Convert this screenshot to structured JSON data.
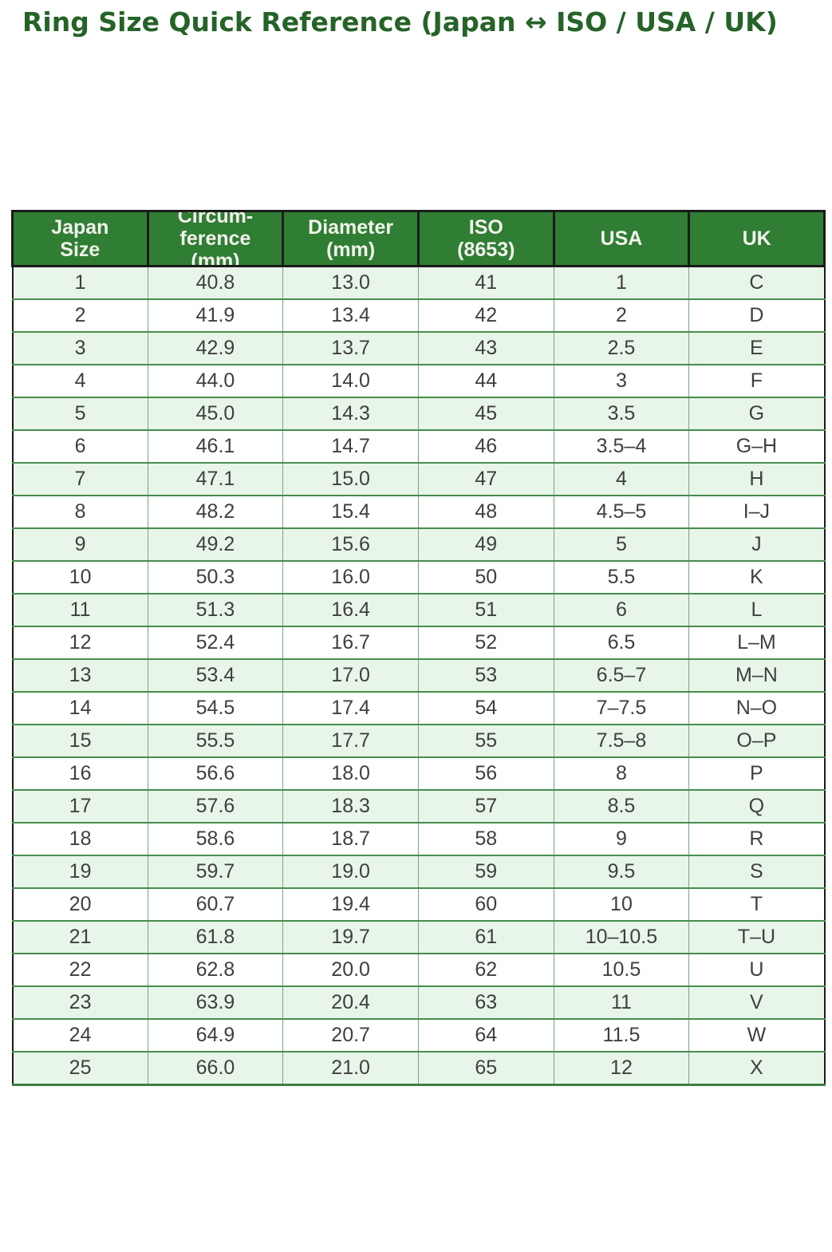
{
  "title": "Ring Size Quick Reference (Japan ↔ ISO / USA / UK)",
  "colors": {
    "title_green": "#256328",
    "header_bg": "#307d34",
    "header_text": "#f2f3ec",
    "outer_dark": "#1b1b1b",
    "row_stripe": "#e8f5e9",
    "row_plain": "#ffffff",
    "cell_text": "#3f3f3f",
    "grid_green": "#478d4d",
    "grid_light_green": "#72ab76",
    "bottom_green": "#3e7d43"
  },
  "chart_data": {
    "type": "table",
    "title": "Ring Size Quick Reference (Japan ↔ ISO / USA / UK)",
    "columns": [
      {
        "key": "japan_size",
        "label": "Japan\nSize"
      },
      {
        "key": "circumference_mm",
        "label": "Circum-\nference\n(mm)"
      },
      {
        "key": "diameter_mm",
        "label": "Diameter\n(mm)"
      },
      {
        "key": "iso_8653",
        "label": "ISO\n(8653)"
      },
      {
        "key": "usa",
        "label": "USA"
      },
      {
        "key": "uk",
        "label": "UK"
      }
    ],
    "rows": [
      [
        "1",
        "40.8",
        "13.0",
        "41",
        "1",
        "C"
      ],
      [
        "2",
        "41.9",
        "13.4",
        "42",
        "2",
        "D"
      ],
      [
        "3",
        "42.9",
        "13.7",
        "43",
        "2.5",
        "E"
      ],
      [
        "4",
        "44.0",
        "14.0",
        "44",
        "3",
        "F"
      ],
      [
        "5",
        "45.0",
        "14.3",
        "45",
        "3.5",
        "G"
      ],
      [
        "6",
        "46.1",
        "14.7",
        "46",
        "3.5–4",
        "G–H"
      ],
      [
        "7",
        "47.1",
        "15.0",
        "47",
        "4",
        "H"
      ],
      [
        "8",
        "48.2",
        "15.4",
        "48",
        "4.5–5",
        "I–J"
      ],
      [
        "9",
        "49.2",
        "15.6",
        "49",
        "5",
        "J"
      ],
      [
        "10",
        "50.3",
        "16.0",
        "50",
        "5.5",
        "K"
      ],
      [
        "11",
        "51.3",
        "16.4",
        "51",
        "6",
        "L"
      ],
      [
        "12",
        "52.4",
        "16.7",
        "52",
        "6.5",
        "L–M"
      ],
      [
        "13",
        "53.4",
        "17.0",
        "53",
        "6.5–7",
        "M–N"
      ],
      [
        "14",
        "54.5",
        "17.4",
        "54",
        "7–7.5",
        "N–O"
      ],
      [
        "15",
        "55.5",
        "17.7",
        "55",
        "7.5–8",
        "O–P"
      ],
      [
        "16",
        "56.6",
        "18.0",
        "56",
        "8",
        "P"
      ],
      [
        "17",
        "57.6",
        "18.3",
        "57",
        "8.5",
        "Q"
      ],
      [
        "18",
        "58.6",
        "18.7",
        "58",
        "9",
        "R"
      ],
      [
        "19",
        "59.7",
        "19.0",
        "59",
        "9.5",
        "S"
      ],
      [
        "20",
        "60.7",
        "19.4",
        "60",
        "10",
        "T"
      ],
      [
        "21",
        "61.8",
        "19.7",
        "61",
        "10–10.5",
        "T–U"
      ],
      [
        "22",
        "62.8",
        "20.0",
        "62",
        "10.5",
        "U"
      ],
      [
        "23",
        "63.9",
        "20.4",
        "63",
        "11",
        "V"
      ],
      [
        "24",
        "64.9",
        "20.7",
        "64",
        "11.5",
        "W"
      ],
      [
        "25",
        "66.0",
        "21.0",
        "65",
        "12",
        "X"
      ]
    ]
  }
}
